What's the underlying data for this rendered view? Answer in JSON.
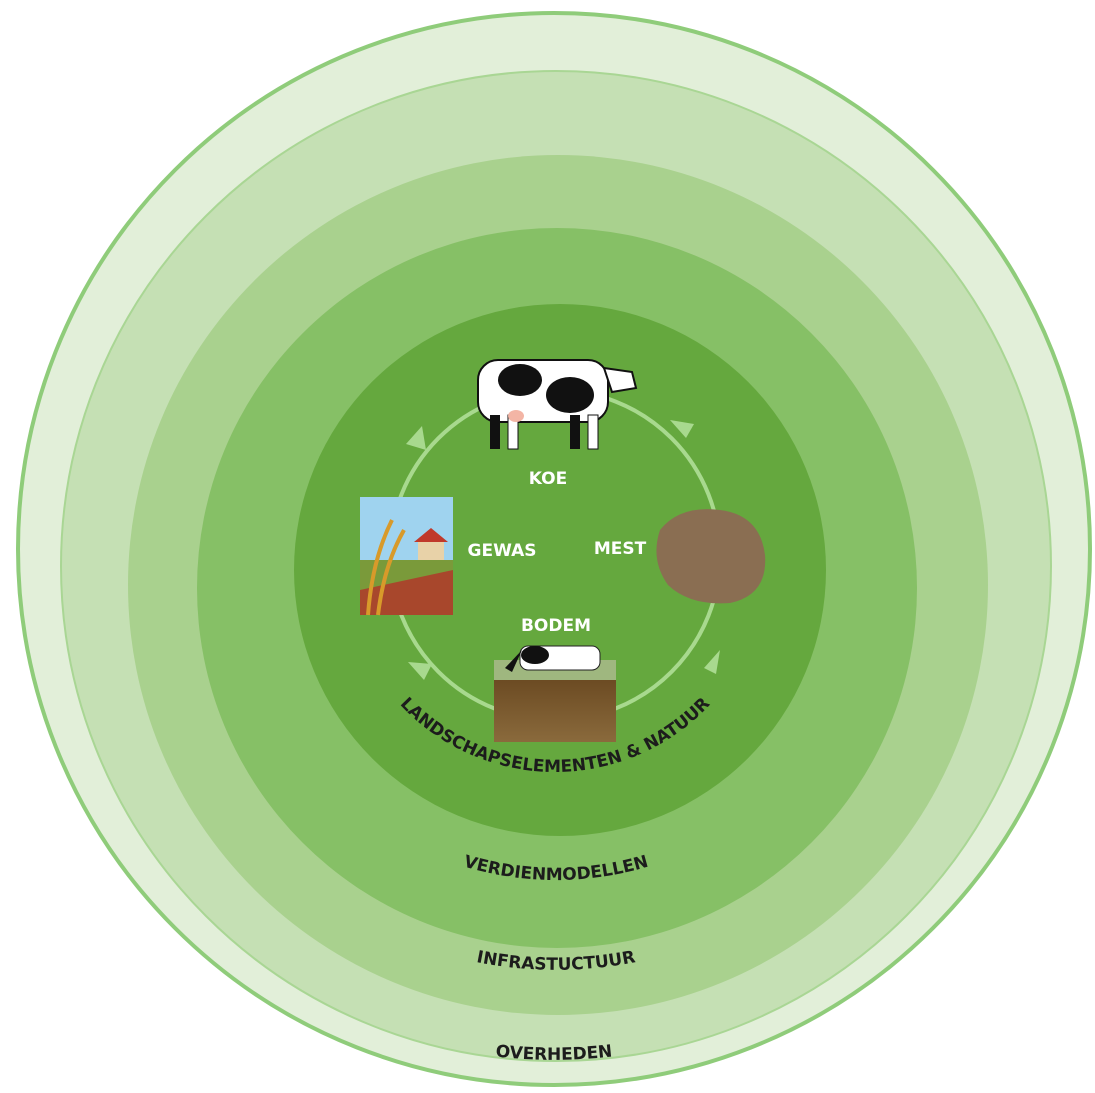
{
  "rings": [
    {
      "label": "OVERHEDEN"
    },
    {
      "label": "INFRASTUCTUUR"
    },
    {
      "label": "VERDIENMODELLEN"
    },
    {
      "label": "LANDSCHAPSELEMENTEN & NATUUR"
    }
  ],
  "cycle": {
    "nodes": [
      {
        "label": "KOE"
      },
      {
        "label": "MEST"
      },
      {
        "label": "BODEM"
      },
      {
        "label": "GEWAS"
      }
    ]
  }
}
